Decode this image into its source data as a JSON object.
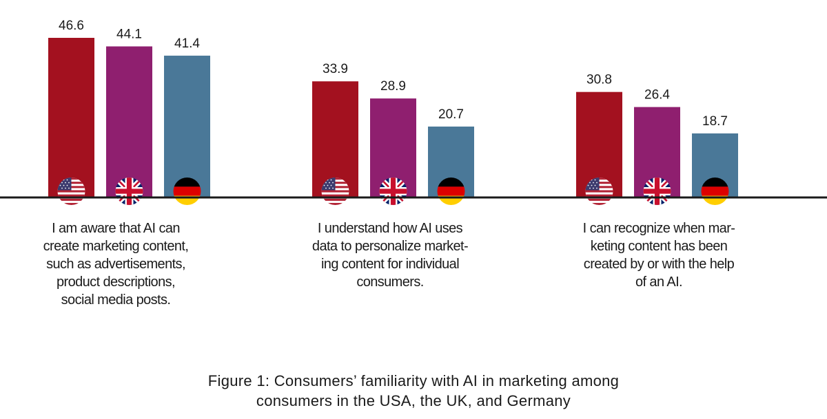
{
  "colors": {
    "usa": "#A3111F",
    "uk": "#8F1F6F",
    "germany": "#4A7898",
    "axis": "#1a1a1a"
  },
  "chart_data": {
    "type": "bar",
    "title": "Figure 1: Consumers’ familiarity with AI in marketing among consumers in the USA, the UK, and Germany",
    "categories": [
      "I am aware that AI can create marketing content, such as advertisements, product descriptions, social media posts.",
      "I understand how AI uses data to personalize marketing content for individual consumers.",
      "I can recognize when marketing content has been created by or with the help of an AI."
    ],
    "series": [
      {
        "name": "USA",
        "flag": "us-flag-icon",
        "values": [
          46.6,
          33.9,
          30.8
        ]
      },
      {
        "name": "UK",
        "flag": "uk-flag-icon",
        "values": [
          44.1,
          28.9,
          26.4
        ]
      },
      {
        "name": "Germany",
        "flag": "germany-flag-icon",
        "values": [
          41.4,
          20.7,
          18.7
        ]
      }
    ],
    "value_labels": [
      [
        "46.6",
        "44.1",
        "41.4"
      ],
      [
        "33.9",
        "28.9",
        "20.7"
      ],
      [
        "30.8",
        "26.4",
        "18.7"
      ]
    ],
    "ylim": [
      0,
      50
    ],
    "xlabel": "",
    "ylabel": "",
    "grid": false
  },
  "labels": {
    "group1": [
      "I am aware that AI can",
      "create marketing content,",
      "such as advertisements,",
      "product descriptions,",
      "social media posts."
    ],
    "group2": [
      "I understand how AI uses",
      "data to personalize market-",
      "ing content for individual",
      "consumers."
    ],
    "group3": [
      "I can recognize when mar-",
      "keting content has been",
      "created by or with the help",
      "of an AI."
    ]
  },
  "caption": {
    "line1": "Figure 1: Consumers’ familiarity with AI in marketing among",
    "line2": "consumers in the USA, the UK, and Germany"
  }
}
